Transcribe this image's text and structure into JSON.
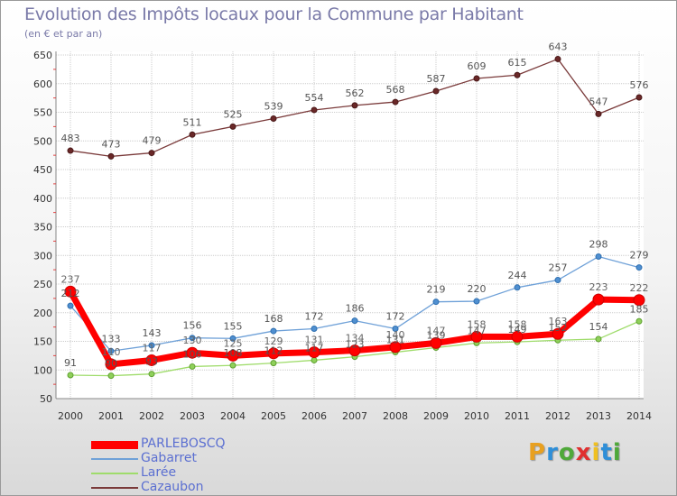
{
  "title": "Evolution des Impôts locaux pour la Commune par Habitant",
  "subtitle": "(en € et par an)",
  "logo": {
    "letters": [
      "P",
      "r",
      "o",
      "x",
      "i",
      "t",
      "i"
    ],
    "colors": [
      "#e8a020",
      "#2f8fd8",
      "#4fa83a",
      "#e03030",
      "#f0c020",
      "#2f8fd8",
      "#4fa83a"
    ]
  },
  "chart_data": {
    "type": "line",
    "x": [
      2000,
      2001,
      2002,
      2003,
      2004,
      2005,
      2006,
      2007,
      2008,
      2009,
      2010,
      2011,
      2012,
      2013,
      2014
    ],
    "ylim": [
      50,
      650
    ],
    "yticks": [
      50,
      100,
      150,
      200,
      250,
      300,
      350,
      400,
      450,
      500,
      550,
      600,
      650
    ],
    "grid": true,
    "legend_position": "bottom-left",
    "series": [
      {
        "name": "PARLEBOSCQ",
        "color": "#ff0000",
        "values": [
          237,
          110,
          117,
          130,
          125,
          129,
          131,
          134,
          140,
          147,
          158,
          158,
          163,
          223,
          222
        ]
      },
      {
        "name": "Gabarret",
        "color": "#6fa1d8",
        "values": [
          212,
          133,
          143,
          156,
          155,
          168,
          172,
          186,
          172,
          219,
          220,
          244,
          257,
          298,
          279
        ]
      },
      {
        "name": "Larée",
        "color": "#9fdc6b",
        "values": [
          91,
          90,
          93,
          106,
          108,
          112,
          117,
          123,
          131,
          139,
          147,
          149,
          152,
          154,
          185
        ]
      },
      {
        "name": "Cazaubon",
        "color": "#7a3a3a",
        "values": [
          483,
          473,
          479,
          511,
          525,
          539,
          554,
          562,
          568,
          587,
          609,
          615,
          643,
          547,
          576
        ]
      }
    ]
  }
}
